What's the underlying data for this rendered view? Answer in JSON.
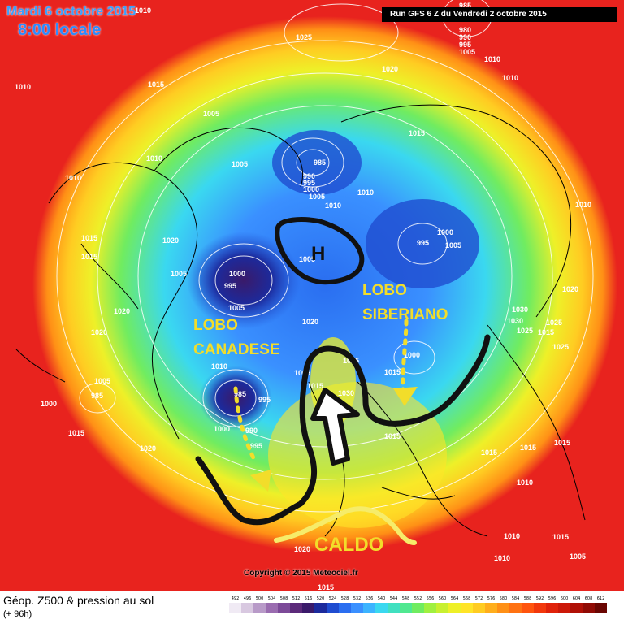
{
  "header": {
    "date": "Mardi 6 octobre 2015",
    "time": "8:00 locale",
    "run": "Run GFS 6 Z du Vendredi 2 octobre 2015"
  },
  "annotations": {
    "lobo_canadese_1": "LOBO",
    "lobo_canadese_2": "CANADESE",
    "lobo_siberiano_1": "LOBO",
    "lobo_siberiano_2": "SIBERIANO",
    "high": "H",
    "caldo": "CALDO"
  },
  "pressure_labels": [
    "1010",
    "1025",
    "985",
    "980",
    "990",
    "995",
    "1005",
    "1010",
    "1010",
    "1015",
    "1020",
    "1005",
    "1015",
    "1010",
    "1005",
    "985",
    "990",
    "995",
    "1000",
    "1005",
    "1010",
    "1015",
    "1010",
    "1005",
    "1000",
    "995",
    "1005",
    "1020",
    "1015",
    "1020",
    "1000",
    "995",
    "1005",
    "1010",
    "1020",
    "1020",
    "1005",
    "1010",
    "1005",
    "985",
    "1000",
    "995",
    "1005",
    "1020",
    "1015",
    "1025",
    "1030",
    "1015",
    "1000",
    "1030",
    "1025",
    "1015",
    "1025",
    "1020",
    "1010",
    "985",
    "1000",
    "990",
    "995",
    "1010",
    "1015",
    "1015",
    "1015",
    "1010",
    "1010",
    "1010",
    "1005",
    "1015",
    "1020",
    "1015",
    "1015",
    "1025",
    "1030",
    "1015"
  ],
  "copyright": "Copyright © 2015 Meteociel.fr",
  "footer": {
    "title": "Géop. Z500 & pression au sol",
    "subtitle": "(+ 96h)"
  },
  "legend": {
    "values": [
      "492",
      "496",
      "500",
      "504",
      "508",
      "512",
      "516",
      "520",
      "524",
      "528",
      "532",
      "536",
      "540",
      "544",
      "548",
      "552",
      "556",
      "560",
      "564",
      "568",
      "572",
      "576",
      "580",
      "584",
      "588",
      "592",
      "596",
      "600",
      "604",
      "608",
      "612"
    ],
    "colors": [
      "#f0eaf4",
      "#d8c8e0",
      "#b89ac8",
      "#9a6cb0",
      "#7c4a98",
      "#5c2a7a",
      "#3a1a6a",
      "#1c2a9c",
      "#1f4cd0",
      "#2a6ef0",
      "#3a90ff",
      "#3cb4ff",
      "#3ad8f0",
      "#40e0c0",
      "#50e890",
      "#70ec60",
      "#a0f040",
      "#c8f030",
      "#eef028",
      "#ffe428",
      "#ffcc22",
      "#ffae1c",
      "#ff9016",
      "#ff7212",
      "#ff540e",
      "#f2380c",
      "#e0220a",
      "#cc1808",
      "#b01006",
      "#900a04",
      "#6a0602"
    ]
  }
}
